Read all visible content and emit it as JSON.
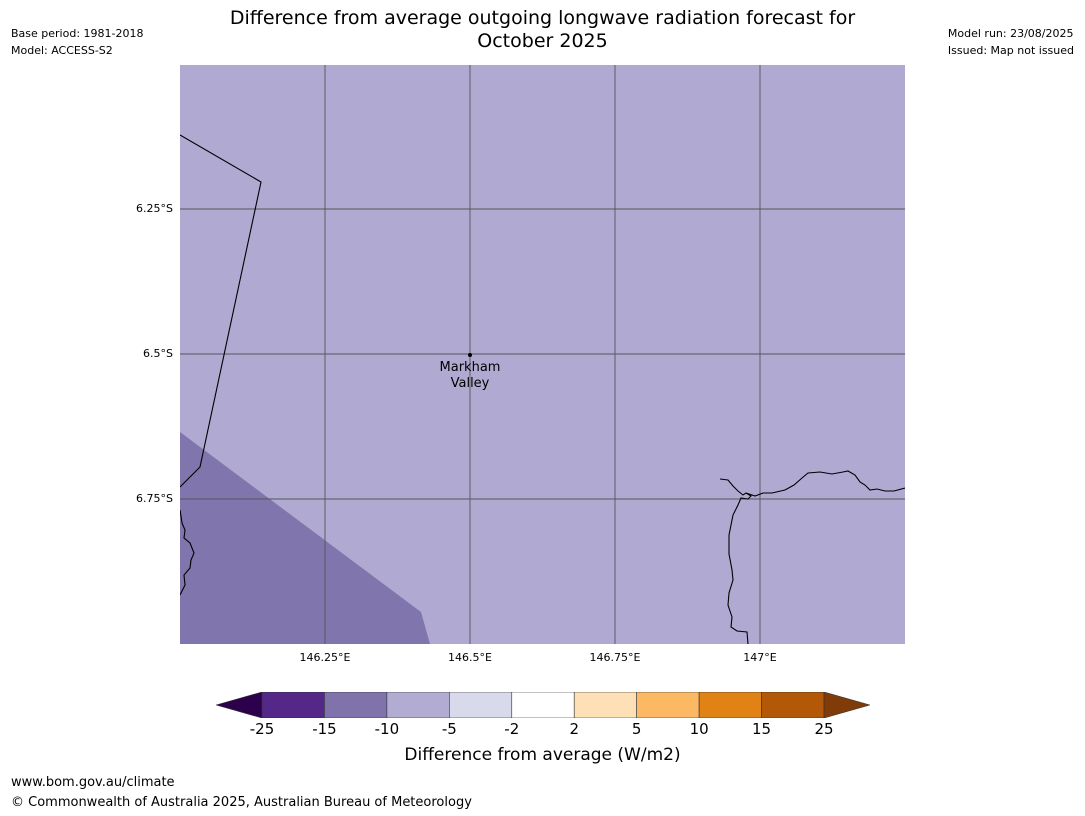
{
  "header": {
    "base_period": "Base period: 1981-2018",
    "model": "Model: ACCESS-S2",
    "model_run": "Model run: 23/08/2025",
    "issued": "Issued: Map not issued",
    "title_line1": "Difference from average outgoing longwave radiation forecast for",
    "title_line2": "October 2025"
  },
  "map": {
    "colors": {
      "background_band": "#b0aad2",
      "anomaly_band": "#8175ad",
      "gridline": "#555555",
      "coastline": "#000000"
    },
    "lat_labels": [
      "6.25°S",
      "6.5°S",
      "6.75°S"
    ],
    "lon_labels": [
      "146.25°E",
      "146.5°E",
      "146.75°E",
      "147°E"
    ],
    "place": {
      "name_line1": "Markham",
      "name_line2": "Valley"
    }
  },
  "colorbar": {
    "ticks": [
      "-25",
      "-15",
      "-10",
      "-5",
      "-2",
      "2",
      "5",
      "10",
      "15",
      "25"
    ],
    "colors": [
      "#2d004b",
      "#542788",
      "#8073ac",
      "#b2abd2",
      "#d8daeb",
      "#ffffff",
      "#fee0b6",
      "#fdb863",
      "#e08214",
      "#b35806",
      "#7f3b08"
    ],
    "label": "Difference from average (W/m2)"
  },
  "footer": {
    "url": "www.bom.gov.au/climate",
    "copyright": "© Commonwealth of Australia 2025, Australian Bureau of Meteorology"
  }
}
